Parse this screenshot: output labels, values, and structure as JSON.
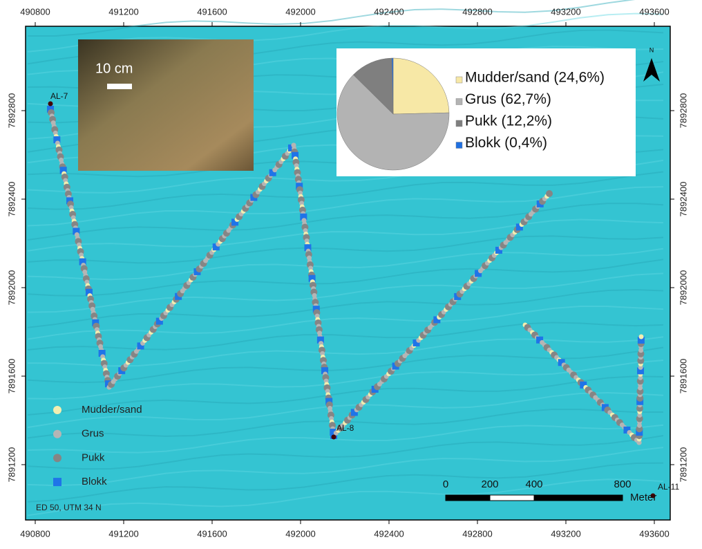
{
  "map": {
    "xticks": [
      490800,
      491200,
      491600,
      492000,
      492400,
      492800,
      493200,
      493600
    ],
    "yticks": [
      7891200,
      7891600,
      7892000,
      7892400,
      7892800
    ],
    "projection": "ED 50, UTM 34 N",
    "north": "N",
    "photo_scale": "10 cm",
    "stations": [
      {
        "label": "AL-7"
      },
      {
        "label": "AL-8"
      },
      {
        "label": "AL-11"
      }
    ],
    "legend": [
      {
        "label": "Mudder/sand",
        "color": "#f2eeb0"
      },
      {
        "label": "Grus",
        "color": "#b5b5b5"
      },
      {
        "label": "Pukk",
        "color": "#858585"
      },
      {
        "label": "Blokk",
        "color": "#1f74e8"
      }
    ],
    "scale_bar": {
      "ticks": [
        0,
        200,
        400,
        800
      ],
      "unit": "Meter"
    }
  },
  "pie": {
    "slices": [
      {
        "label": "Mudder/sand (24,6%)",
        "value": 24.6,
        "color": "#f7e8a6"
      },
      {
        "label": "Grus (62,7%)",
        "value": 62.7,
        "color": "#b3b3b3"
      },
      {
        "label": "Pukk (12,2%)",
        "value": 12.2,
        "color": "#7f7f7f"
      },
      {
        "label": "Blokk (0,4%)",
        "value": 0.4,
        "color": "#1f6fe0"
      }
    ]
  }
}
